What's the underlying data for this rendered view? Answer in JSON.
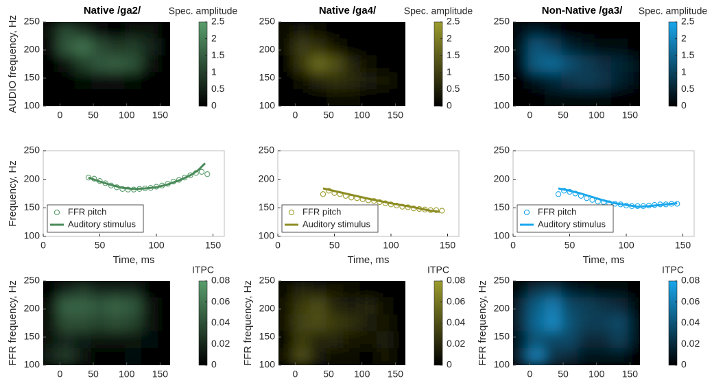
{
  "chart_data": [
    {
      "type": "heatmap",
      "title": "Native /ga2/",
      "ylabel": "AUDIO frequency, Hz",
      "colorbar_label": "Spec. amplitude",
      "color": "#5a9e6c",
      "xlim": [
        -25,
        165
      ],
      "ylim": [
        100,
        250
      ],
      "xticks": [
        0,
        50,
        100,
        150
      ],
      "yticks": [
        100,
        150,
        200,
        250
      ],
      "clim": [
        0,
        2.5
      ],
      "cticks": [
        0,
        0.5,
        1,
        1.5,
        2,
        2.5
      ],
      "x": [
        -15,
        10,
        35,
        60,
        85,
        110,
        135,
        160
      ],
      "y": [
        235,
        205,
        175,
        145,
        115
      ],
      "z": [
        [
          0.3,
          1.2,
          0.8,
          0.2,
          0.1,
          0.3,
          0.4,
          0.1
        ],
        [
          0.2,
          1.4,
          1.8,
          1.2,
          0.9,
          1.0,
          0.6,
          0.1
        ],
        [
          0.05,
          0.4,
          1.0,
          1.4,
          1.5,
          1.3,
          0.3,
          0
        ],
        [
          0,
          0.1,
          0.15,
          0.2,
          0.2,
          0.15,
          0.05,
          0
        ],
        [
          0,
          0,
          0.05,
          0.05,
          0.05,
          0.05,
          0,
          0
        ]
      ]
    },
    {
      "type": "heatmap",
      "title": "Native /ga4/",
      "colorbar_label": "Spec. amplitude",
      "color": "#9c9c2e",
      "xlim": [
        -25,
        165
      ],
      "ylim": [
        100,
        250
      ],
      "xticks": [
        0,
        50,
        100,
        150
      ],
      "yticks": [
        100,
        150,
        200,
        250
      ],
      "clim": [
        0,
        2.5
      ],
      "cticks": [
        0,
        0.5,
        1,
        1.5,
        2,
        2.5
      ],
      "x": [
        -15,
        10,
        35,
        60,
        85,
        110,
        135,
        160
      ],
      "y": [
        235,
        205,
        175,
        145,
        115
      ],
      "z": [
        [
          0.2,
          0.5,
          0.2,
          0,
          0,
          0,
          0,
          0
        ],
        [
          0.2,
          1.0,
          0.8,
          0.3,
          0.1,
          0,
          0,
          0
        ],
        [
          0.1,
          0.9,
          1.7,
          1.3,
          0.6,
          0.2,
          0.1,
          0
        ],
        [
          0,
          0.2,
          0.6,
          0.8,
          0.7,
          0.5,
          0.3,
          0
        ],
        [
          0,
          0,
          0.1,
          0.2,
          0.2,
          0.1,
          0.1,
          0
        ]
      ]
    },
    {
      "type": "heatmap",
      "title": "Non-Native /ga3/",
      "colorbar_label": "Spec. amplitude",
      "color": "#1aa7ec",
      "xlim": [
        -25,
        165
      ],
      "ylim": [
        100,
        250
      ],
      "xticks": [
        0,
        50,
        100,
        150
      ],
      "yticks": [
        100,
        150,
        200,
        250
      ],
      "clim": [
        0,
        2.5
      ],
      "cticks": [
        0,
        0.5,
        1,
        1.5,
        2,
        2.5
      ],
      "x": [
        -15,
        10,
        35,
        60,
        85,
        110,
        135,
        160
      ],
      "y": [
        235,
        205,
        175,
        145,
        115
      ],
      "z": [
        [
          0.2,
          0.5,
          0.2,
          0.05,
          0,
          0,
          0,
          0
        ],
        [
          0.3,
          1.3,
          1.0,
          0.5,
          0.3,
          0.1,
          0.1,
          0.05
        ],
        [
          0.2,
          1.4,
          1.6,
          1.2,
          0.9,
          0.7,
          0.6,
          0.3
        ],
        [
          0,
          0.3,
          0.6,
          0.8,
          0.9,
          0.8,
          0.5,
          0.2
        ],
        [
          0,
          0.05,
          0.1,
          0.1,
          0.1,
          0.1,
          0.05,
          0
        ]
      ]
    },
    {
      "type": "line",
      "xlabel": "Time, ms",
      "ylabel": "Frequency, Hz",
      "xlim": [
        0,
        160
      ],
      "ylim": [
        100,
        250
      ],
      "xticks": [
        0,
        50,
        100,
        150
      ],
      "yticks": [
        100,
        150,
        200,
        250
      ],
      "legend": "lower left",
      "series": [
        {
          "name": "FFR pitch",
          "style": "markers",
          "color": "#5a9e6c",
          "x": [
            40,
            45,
            50,
            55,
            60,
            65,
            70,
            75,
            80,
            85,
            90,
            95,
            100,
            105,
            110,
            115,
            120,
            125,
            130,
            135,
            140,
            145
          ],
          "values": [
            203,
            201,
            197,
            193,
            189,
            186,
            183,
            182,
            182,
            183,
            184,
            185,
            187,
            189,
            192,
            196,
            199,
            203,
            207,
            211,
            213,
            209
          ]
        },
        {
          "name": "Auditory stimulus",
          "style": "line",
          "color": "#4a8a5a",
          "x": [
            40,
            50,
            60,
            70,
            80,
            90,
            100,
            110,
            120,
            130,
            137,
            143
          ],
          "values": [
            203,
            196,
            190,
            185,
            183,
            184,
            186,
            191,
            198,
            207,
            216,
            228
          ]
        }
      ]
    },
    {
      "type": "line",
      "xlabel": "Time, ms",
      "xlim": [
        0,
        160
      ],
      "ylim": [
        100,
        250
      ],
      "xticks": [
        0,
        50,
        100,
        150
      ],
      "yticks": [
        100,
        150,
        200,
        250
      ],
      "legend": "lower left",
      "series": [
        {
          "name": "FFR pitch",
          "style": "markers",
          "color": "#9c9c2e",
          "x": [
            40,
            45,
            50,
            55,
            60,
            65,
            70,
            75,
            80,
            85,
            90,
            95,
            100,
            105,
            110,
            115,
            120,
            125,
            130,
            135,
            140,
            145
          ],
          "values": [
            174,
            180,
            176,
            174,
            171,
            168,
            167,
            165,
            163,
            162,
            160,
            158,
            156,
            154,
            152,
            151,
            149,
            148,
            147,
            146,
            146,
            145
          ]
        },
        {
          "name": "Auditory stimulus",
          "style": "line",
          "color": "#8c8c24",
          "x": [
            40,
            60,
            80,
            100,
            120,
            135,
            143
          ],
          "values": [
            184,
            175,
            166,
            158,
            151,
            145,
            143
          ]
        }
      ]
    },
    {
      "type": "line",
      "xlabel": "Time, ms",
      "xlim": [
        0,
        160
      ],
      "ylim": [
        100,
        250
      ],
      "xticks": [
        0,
        50,
        100,
        150
      ],
      "yticks": [
        100,
        150,
        200,
        250
      ],
      "legend": "lower left",
      "series": [
        {
          "name": "FFR pitch",
          "style": "markers",
          "color": "#1aa7ec",
          "x": [
            40,
            45,
            50,
            55,
            60,
            65,
            70,
            75,
            80,
            85,
            90,
            95,
            100,
            105,
            110,
            115,
            120,
            125,
            130,
            135,
            140,
            145
          ],
          "values": [
            174,
            180,
            178,
            175,
            171,
            167,
            164,
            161,
            160,
            158,
            157,
            156,
            154,
            153,
            153,
            153,
            154,
            155,
            156,
            156,
            157,
            157
          ]
        },
        {
          "name": "Auditory stimulus",
          "style": "line",
          "color": "#1aa7ec",
          "x": [
            40,
            50,
            60,
            70,
            80,
            90,
            100,
            110,
            120,
            130,
            145
          ],
          "values": [
            184,
            180,
            175,
            169,
            163,
            158,
            155,
            152,
            153,
            155,
            158
          ]
        }
      ]
    },
    {
      "type": "heatmap",
      "ylabel": "FFR frequency, Hz",
      "colorbar_label": "ITPC",
      "color": "#5a9e6c",
      "xlim": [
        -25,
        165
      ],
      "ylim": [
        100,
        250
      ],
      "xticks": [
        0,
        50,
        100,
        150
      ],
      "yticks": [
        100,
        150,
        200,
        250
      ],
      "clim": [
        0,
        0.08
      ],
      "cticks": [
        0,
        0.02,
        0.04,
        0.06,
        0.08
      ],
      "x": [
        -15,
        10,
        35,
        60,
        85,
        110,
        135,
        160
      ],
      "y": [
        235,
        205,
        175,
        145,
        115
      ],
      "z": [
        [
          0,
          0.02,
          0.03,
          0.02,
          0.02,
          0.02,
          0,
          0
        ],
        [
          0.01,
          0.05,
          0.05,
          0.045,
          0.05,
          0.045,
          0.01,
          0
        ],
        [
          0.01,
          0.04,
          0.04,
          0.035,
          0.04,
          0.035,
          0.01,
          0
        ],
        [
          0.01,
          0.02,
          0.015,
          0.01,
          0.01,
          0.01,
          0.005,
          0
        ],
        [
          0.02,
          0.03,
          0.01,
          0,
          0,
          0.005,
          0,
          0
        ]
      ]
    },
    {
      "type": "heatmap",
      "ylabel": "FFR frequency, Hz",
      "colorbar_label": "ITPC",
      "color": "#9c9c2e",
      "xlim": [
        -25,
        165
      ],
      "ylim": [
        100,
        250
      ],
      "xticks": [
        0,
        50,
        100,
        150
      ],
      "yticks": [
        100,
        150,
        200,
        250
      ],
      "clim": [
        0,
        0.08
      ],
      "cticks": [
        0,
        0.02,
        0.04,
        0.06,
        0.08
      ],
      "x": [
        -15,
        10,
        35,
        60,
        85,
        110,
        135,
        160
      ],
      "y": [
        235,
        205,
        175,
        145,
        115
      ],
      "z": [
        [
          0.005,
          0.02,
          0.015,
          0.01,
          0.005,
          0,
          0,
          0
        ],
        [
          0.01,
          0.03,
          0.04,
          0.02,
          0.015,
          0.02,
          0.005,
          0
        ],
        [
          0.01,
          0.035,
          0.04,
          0.03,
          0.025,
          0.015,
          0.01,
          0
        ],
        [
          0.005,
          0.03,
          0.02,
          0.02,
          0.01,
          0.01,
          0.015,
          0
        ],
        [
          0.01,
          0.04,
          0.015,
          0.005,
          0.005,
          0,
          0.01,
          0
        ]
      ]
    },
    {
      "type": "heatmap",
      "ylabel": "FFR frequency, Hz",
      "colorbar_label": "ITPC",
      "color": "#1aa7ec",
      "xlim": [
        -25,
        165
      ],
      "ylim": [
        100,
        250
      ],
      "xticks": [
        0,
        50,
        100,
        150
      ],
      "yticks": [
        100,
        150,
        200,
        250
      ],
      "clim": [
        0,
        0.08
      ],
      "cticks": [
        0,
        0.02,
        0.04,
        0.06,
        0.08
      ],
      "x": [
        -15,
        10,
        35,
        60,
        85,
        110,
        135,
        160
      ],
      "y": [
        235,
        205,
        175,
        145,
        115
      ],
      "z": [
        [
          0.005,
          0.025,
          0.03,
          0.015,
          0.01,
          0.005,
          0.005,
          0
        ],
        [
          0.02,
          0.045,
          0.06,
          0.035,
          0.03,
          0.025,
          0.02,
          0.005
        ],
        [
          0.02,
          0.05,
          0.065,
          0.04,
          0.03,
          0.03,
          0.035,
          0.01
        ],
        [
          0.015,
          0.04,
          0.035,
          0.035,
          0.02,
          0.02,
          0.03,
          0.01
        ],
        [
          0.02,
          0.06,
          0.025,
          0.02,
          0.01,
          0.01,
          0.01,
          0
        ]
      ]
    }
  ]
}
